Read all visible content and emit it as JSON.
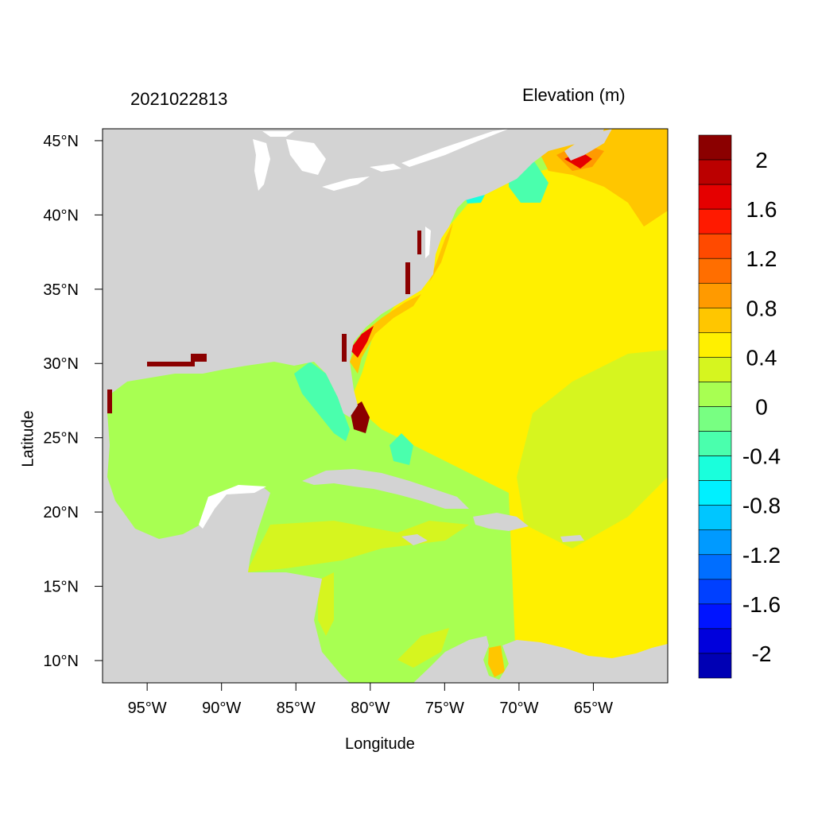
{
  "header": {
    "date_label": "2021022813",
    "variable_label": "Elevation (m)"
  },
  "axes": {
    "x_title": "Longitude",
    "y_title": "Latitude",
    "x_ticks": [
      {
        "lon": -95,
        "label": "95°W"
      },
      {
        "lon": -90,
        "label": "90°W"
      },
      {
        "lon": -85,
        "label": "85°W"
      },
      {
        "lon": -80,
        "label": "80°W"
      },
      {
        "lon": -75,
        "label": "75°W"
      },
      {
        "lon": -70,
        "label": "70°W"
      },
      {
        "lon": -65,
        "label": "65°W"
      }
    ],
    "y_ticks": [
      {
        "lat": 45,
        "label": "45°N"
      },
      {
        "lat": 40,
        "label": "40°N"
      },
      {
        "lat": 35,
        "label": "35°N"
      },
      {
        "lat": 30,
        "label": "30°N"
      },
      {
        "lat": 25,
        "label": "25°N"
      },
      {
        "lat": 20,
        "label": "20°N"
      },
      {
        "lat": 15,
        "label": "15°N"
      },
      {
        "lat": 10,
        "label": "10°N"
      }
    ],
    "lon_range": [
      -98,
      -60
    ],
    "lat_range": [
      8.5,
      45.8
    ]
  },
  "colorbar": {
    "bins": [
      {
        "color": "#8b0000"
      },
      {
        "color": "#bb0000"
      },
      {
        "color": "#e50000"
      },
      {
        "color": "#ff1a00"
      },
      {
        "color": "#ff4a00"
      },
      {
        "color": "#ff6e00"
      },
      {
        "color": "#ff9a00"
      },
      {
        "color": "#ffc600"
      },
      {
        "color": "#fff000"
      },
      {
        "color": "#d6f51f"
      },
      {
        "color": "#a8ff52"
      },
      {
        "color": "#78ff82"
      },
      {
        "color": "#4affad"
      },
      {
        "color": "#1affdc"
      },
      {
        "color": "#00f0ff"
      },
      {
        "color": "#00c6ff"
      },
      {
        "color": "#009aff"
      },
      {
        "color": "#006eff"
      },
      {
        "color": "#0040ff"
      },
      {
        "color": "#0014ff"
      },
      {
        "color": "#0000dc"
      },
      {
        "color": "#0000b4"
      }
    ],
    "tick_labels": [
      "2",
      "1.6",
      "1.2",
      "0.8",
      "0.4",
      "0",
      "-0.4",
      "-0.8",
      "-1.2",
      "-1.6",
      "-2"
    ]
  },
  "colors": {
    "land": "#d3d3d3",
    "inland_water": "#ffffff",
    "background_field": "#a8ff52"
  },
  "field_regions": [
    {
      "value": 0.45,
      "color": "#fff000"
    },
    {
      "value": 0.3,
      "color": "#d6f51f"
    },
    {
      "value": 0.7,
      "color": "#ffc600"
    },
    {
      "value": 0.95,
      "color": "#ff9a00"
    },
    {
      "value": 1.6,
      "color": "#e50000"
    },
    {
      "value": 2.1,
      "color": "#8b0000"
    },
    {
      "value": -0.3,
      "color": "#4affad"
    },
    {
      "value": -0.6,
      "color": "#1affdc"
    }
  ]
}
